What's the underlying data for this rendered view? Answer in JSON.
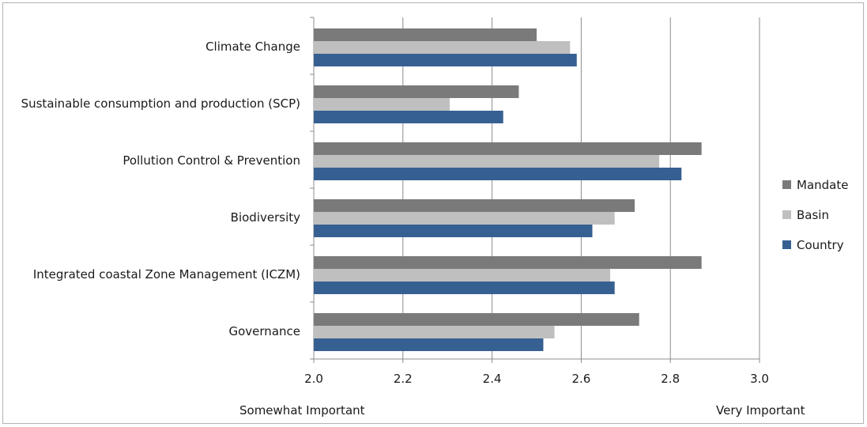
{
  "chart_data": {
    "type": "bar",
    "orientation": "horizontal",
    "categories": [
      "Climate Change",
      "Sustainable consumption and production (SCP)",
      "Pollution Control & Prevention",
      "Biodiversity",
      "Integrated coastal Zone Management (ICZM)",
      "Governance"
    ],
    "series": [
      {
        "name": "Mandate",
        "color": "#7a7a7a",
        "values": [
          2.5,
          2.46,
          2.87,
          2.72,
          2.87,
          2.73
        ]
      },
      {
        "name": "Basin",
        "color": "#bfbfbf",
        "values": [
          2.575,
          2.305,
          2.775,
          2.675,
          2.665,
          2.54
        ]
      },
      {
        "name": "Country",
        "color": "#376092",
        "values": [
          2.59,
          2.425,
          2.825,
          2.625,
          2.675,
          2.515
        ]
      }
    ],
    "xlim": [
      2.0,
      3.0
    ],
    "xticks": [
      "2.0",
      "2.2",
      "2.4",
      "2.6",
      "2.8",
      "3.0"
    ],
    "grid": "vertical",
    "legend_position": "right",
    "x_end_labels": {
      "left": "Somewhat Important",
      "right": "Very Important"
    }
  }
}
